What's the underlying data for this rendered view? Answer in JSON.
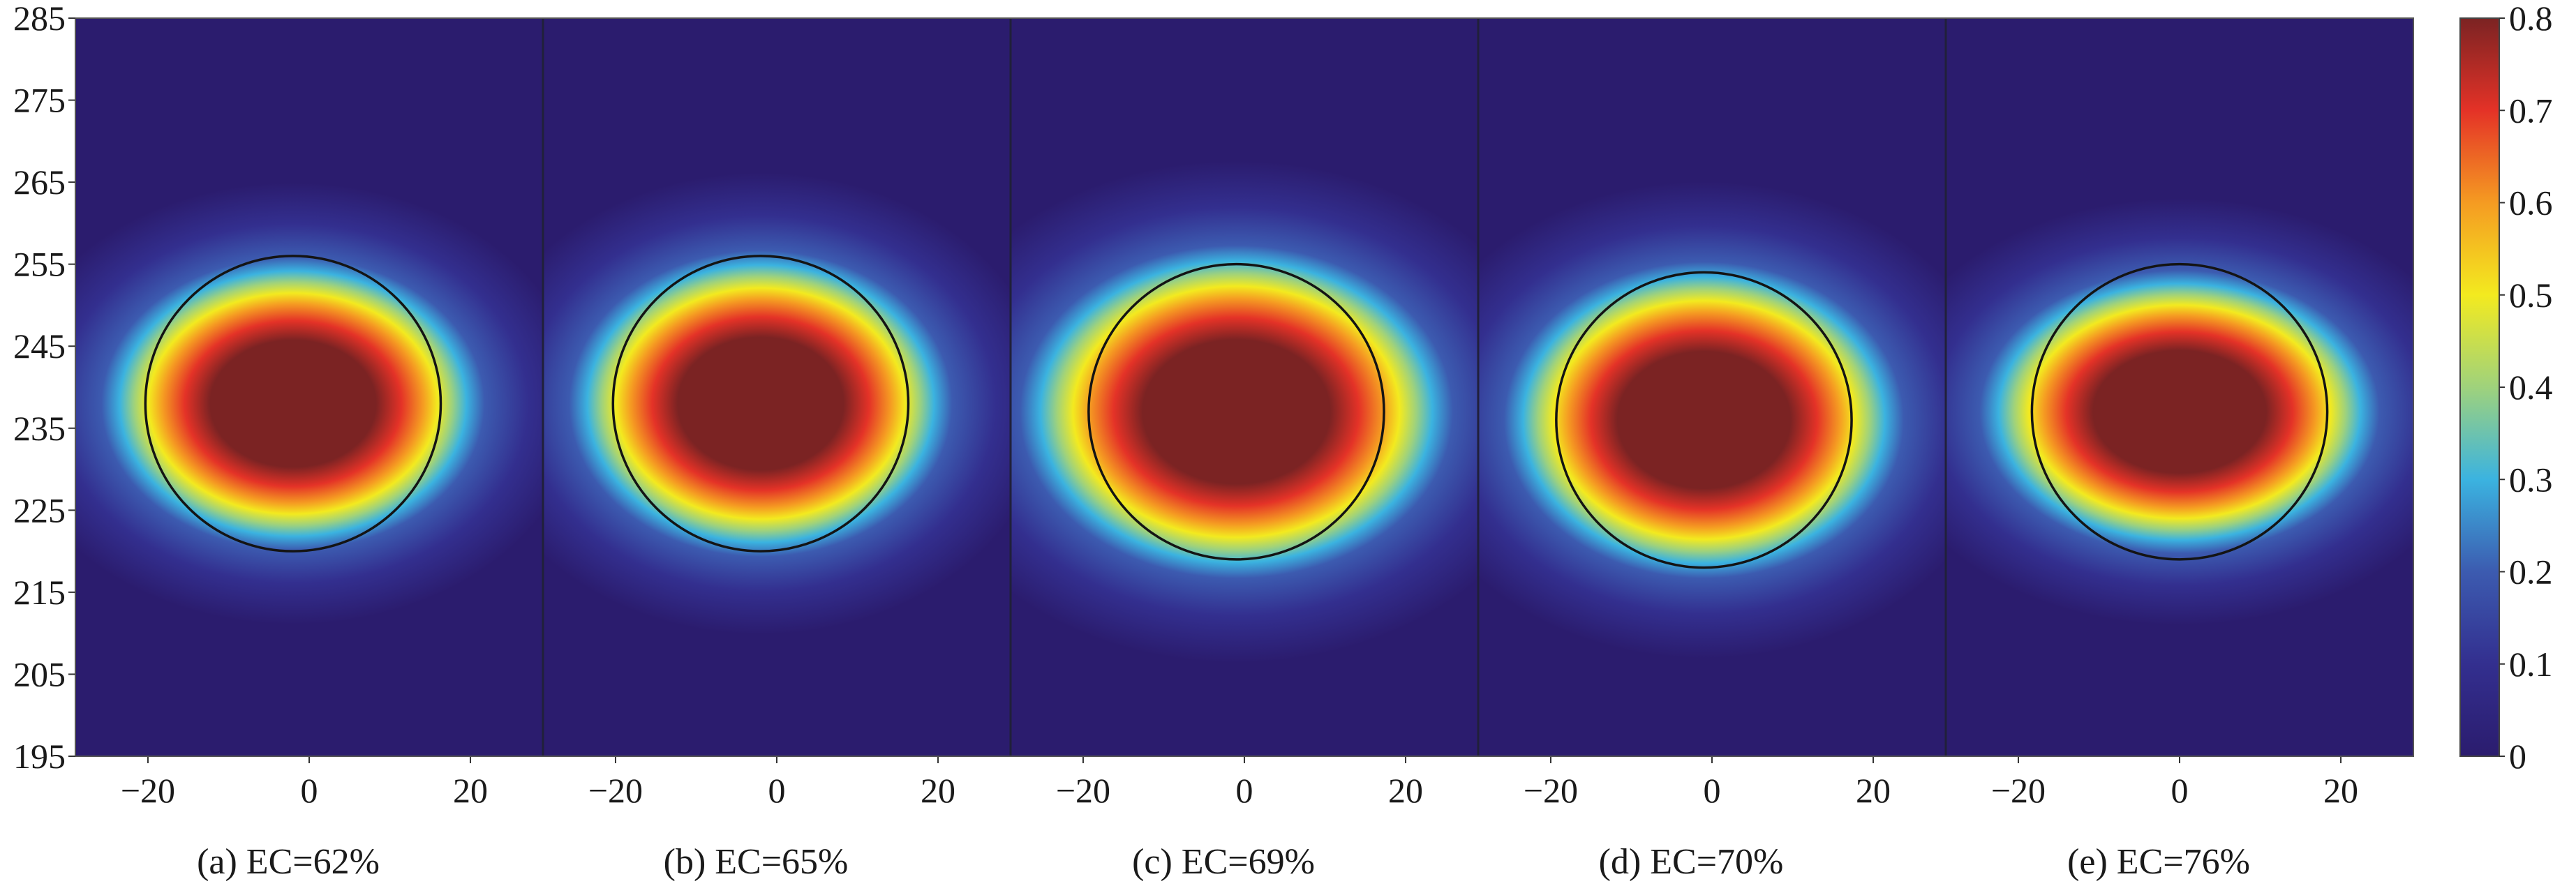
{
  "chart_data": {
    "type": "heatmap",
    "shared_y_axis": {
      "ylim": [
        195,
        285
      ],
      "ticks": [
        195,
        205,
        215,
        225,
        235,
        245,
        255,
        265,
        275,
        285
      ]
    },
    "colorbar": {
      "min": 0,
      "max": 0.8,
      "ticks": [
        0,
        0.1,
        0.2,
        0.3,
        0.4,
        0.5,
        0.6,
        0.7,
        0.8
      ],
      "tick_labels": [
        "0",
        "0.1",
        "0.2",
        "0.3",
        "0.4",
        "0.5",
        "0.6",
        "0.7",
        "0.8"
      ],
      "colormap": [
        "#2b1c6e",
        "#332f8f",
        "#3c5bb0",
        "#3bb3e0",
        "#9fd27c",
        "#f3ea1f",
        "#f59b22",
        "#e43227",
        "#7b2323"
      ]
    },
    "panels": [
      {
        "label": "(a) EC=62%",
        "xlim": [
          -29,
          29
        ],
        "x_ticks": [
          -20,
          0,
          20
        ],
        "x_tick_labels": [
          "−20",
          "0",
          "20"
        ],
        "circle_center": [
          -2,
          238
        ],
        "circle_radius": 18,
        "peak_value": 0.8,
        "spread_x": 1.15,
        "spread_y": 0.88
      },
      {
        "label": "(b) EC=65%",
        "xlim": [
          -29,
          29
        ],
        "x_ticks": [
          -20,
          0,
          20
        ],
        "x_tick_labels": [
          "−20",
          "0",
          "20"
        ],
        "circle_center": [
          -2,
          238
        ],
        "circle_radius": 18,
        "peak_value": 0.8,
        "spread_x": 1.15,
        "spread_y": 0.92
      },
      {
        "label": "(c) EC=69%",
        "xlim": [
          -29,
          29
        ],
        "x_ticks": [
          -20,
          0,
          20
        ],
        "x_tick_labels": [
          "−20",
          "0",
          "20"
        ],
        "circle_center": [
          -1,
          237
        ],
        "circle_radius": 18,
        "peak_value": 0.8,
        "spread_x": 1.3,
        "spread_y": 1.0
      },
      {
        "label": "(d) EC=70%",
        "xlim": [
          -29,
          29
        ],
        "x_ticks": [
          -20,
          0,
          20
        ],
        "x_tick_labels": [
          "−20",
          "0",
          "20"
        ],
        "circle_center": [
          -1,
          236
        ],
        "circle_radius": 18,
        "peak_value": 0.8,
        "spread_x": 1.2,
        "spread_y": 0.95
      },
      {
        "label": "(e) EC=76%",
        "xlim": [
          -29,
          29
        ],
        "x_ticks": [
          -20,
          0,
          20
        ],
        "x_tick_labels": [
          "−20",
          "0",
          "20"
        ],
        "circle_center": [
          0,
          237
        ],
        "circle_radius": 18,
        "peak_value": 0.8,
        "spread_x": 1.2,
        "spread_y": 0.85
      }
    ]
  }
}
